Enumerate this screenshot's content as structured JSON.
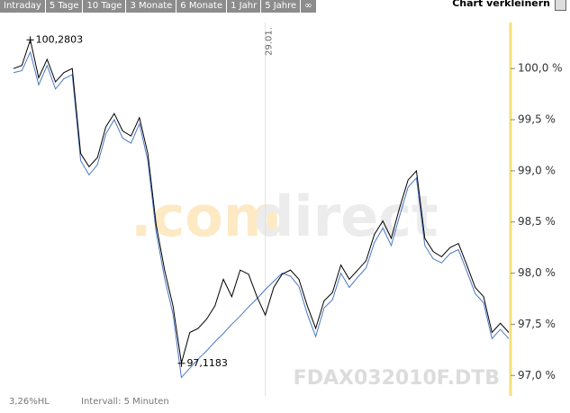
{
  "tabs": [
    "Intraday",
    "5 Tage",
    "10 Tage",
    "3 Monate",
    "6 Monate",
    "1 Jahr",
    "5 Jahre",
    "∞"
  ],
  "resize_button": "Chart verkleinern",
  "chart_data": {
    "type": "line",
    "categories": [
      null,
      null,
      null,
      null,
      null,
      null,
      null,
      null,
      null,
      null,
      null,
      null,
      null,
      null,
      null,
      null,
      null,
      null,
      null,
      null,
      null,
      null,
      null,
      null,
      null,
      null,
      null,
      null,
      null,
      null,
      "29.01.",
      null,
      null,
      null,
      null,
      null,
      null,
      null,
      null,
      null,
      null,
      null,
      null,
      null,
      null,
      null,
      null,
      null,
      null,
      null,
      null,
      null,
      null,
      null,
      null,
      null,
      null,
      null,
      null,
      null
    ],
    "series": [
      {
        "color": "#000000",
        "values": [
          100.0,
          100.03,
          100.28,
          99.91,
          100.09,
          99.87,
          99.96,
          100.0,
          99.17,
          99.04,
          99.13,
          99.43,
          99.56,
          99.39,
          99.34,
          99.52,
          99.17,
          98.47,
          98.03,
          97.68,
          97.12,
          97.42,
          97.46,
          97.55,
          97.68,
          97.94,
          97.77,
          98.03,
          97.99,
          97.77,
          97.59,
          97.86,
          97.99,
          98.03,
          97.94,
          97.68,
          97.46,
          97.73,
          97.81,
          98.08,
          97.94,
          98.03,
          98.12,
          98.38,
          98.51,
          98.34,
          98.64,
          98.91,
          99.0,
          98.34,
          98.21,
          98.16,
          98.25,
          98.29,
          98.08,
          97.86,
          97.77,
          97.42,
          97.51,
          97.42
        ]
      },
      {
        "color": "#4a78c2",
        "values": [
          99.96,
          99.98,
          100.16,
          99.84,
          100.03,
          99.8,
          99.9,
          99.94,
          99.1,
          98.96,
          99.06,
          99.36,
          99.5,
          99.32,
          99.27,
          99.46,
          99.1,
          98.4,
          97.95,
          97.6,
          96.98,
          97.07,
          97.16,
          97.24,
          97.33,
          97.41,
          97.5,
          97.58,
          97.67,
          97.75,
          97.84,
          97.92,
          98.0,
          97.97,
          97.87,
          97.6,
          97.38,
          97.66,
          97.74,
          98.0,
          97.86,
          97.96,
          98.05,
          98.3,
          98.44,
          98.27,
          98.56,
          98.84,
          98.93,
          98.27,
          98.14,
          98.1,
          98.19,
          98.23,
          98.02,
          97.8,
          97.71,
          97.36,
          97.45,
          97.36
        ]
      }
    ],
    "ylim": [
      96.8,
      100.45
    ],
    "yticks": [
      {
        "value": 97.0,
        "label": "97,0 %"
      },
      {
        "value": 97.5,
        "label": "97,5 %"
      },
      {
        "value": 98.0,
        "label": "98,0 %"
      },
      {
        "value": 98.5,
        "label": "98,5 %"
      },
      {
        "value": 99.0,
        "label": "99,0 %"
      },
      {
        "value": 99.5,
        "label": "99,5 %"
      },
      {
        "value": 100.0,
        "label": "100,0 %"
      }
    ],
    "high": {
      "value": 100.2803,
      "label": "100,2803"
    },
    "low": {
      "value": 97.1183,
      "label": "97,1183"
    },
    "watermark": [
      ".com",
      "direct"
    ],
    "symbol": "FDAX032010F.DTB",
    "range_note": "3,26%HL",
    "interval": "Intervall: 5 Minuten"
  }
}
